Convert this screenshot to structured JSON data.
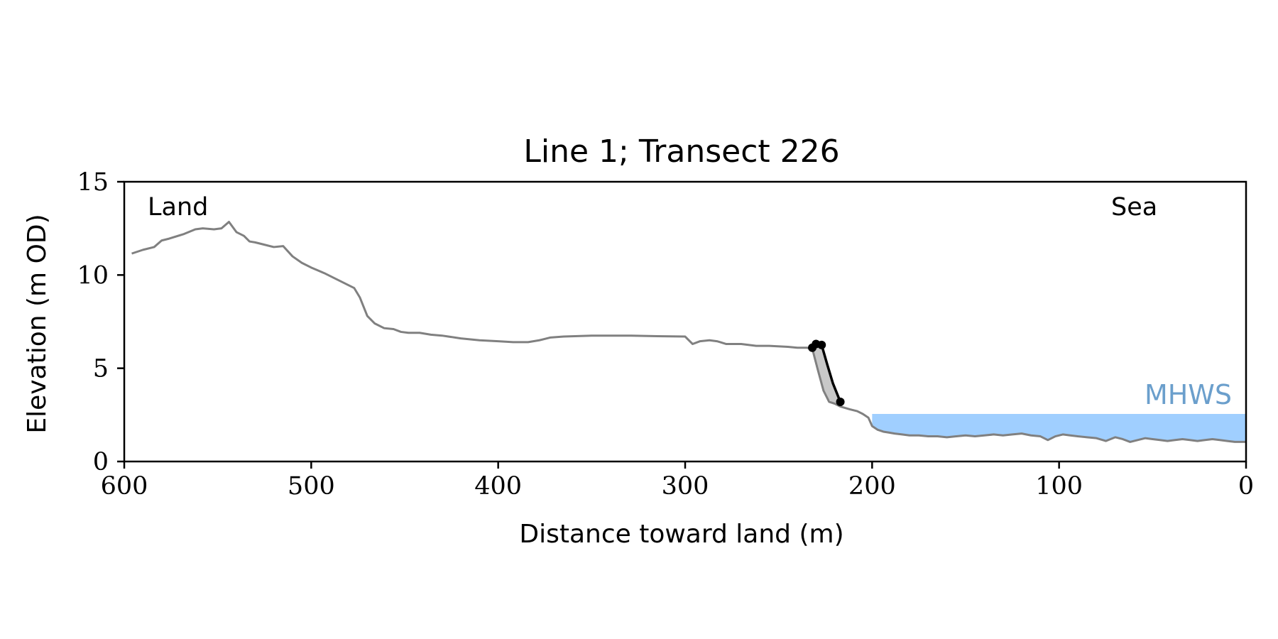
{
  "chart_data": {
    "type": "line",
    "title": "Line 1; Transect 226",
    "xlabel": "Distance toward land (m)",
    "ylabel": "Elevation (m OD)",
    "xlim": [
      600,
      0
    ],
    "ylim": [
      0,
      15
    ],
    "x_ticks": [
      600,
      500,
      400,
      300,
      200,
      100,
      0
    ],
    "y_ticks": [
      0,
      5,
      10,
      15
    ],
    "grid": false,
    "annotations": {
      "left": "Land",
      "right": "Sea",
      "water": "MHWS"
    },
    "mhws": {
      "elevation": 2.55,
      "x_from": 200,
      "x_to": 0,
      "color": "#a0cfff",
      "label_color": "#6b9fcc"
    },
    "profile": {
      "color": "#808080",
      "x": [
        596,
        590,
        584,
        580,
        576,
        568,
        562,
        558,
        552,
        548,
        544,
        540,
        536,
        533,
        530,
        526,
        520,
        515,
        510,
        505,
        500,
        493,
        485,
        477,
        474,
        470,
        466,
        461,
        456,
        452,
        448,
        442,
        436,
        430,
        420,
        410,
        400,
        392,
        384,
        378,
        372,
        365,
        350,
        330,
        315,
        300,
        296,
        292,
        287,
        283,
        278,
        270,
        262,
        255,
        245,
        240,
        235,
        232,
        229,
        226,
        223,
        220,
        217,
        212,
        208,
        205,
        202,
        200,
        197,
        194,
        191,
        188,
        184,
        180,
        175,
        170,
        165,
        160,
        155,
        150,
        145,
        140,
        135,
        130,
        125,
        120,
        115,
        110,
        106,
        102,
        98,
        94,
        90,
        85,
        80,
        75,
        70,
        66,
        62,
        58,
        54,
        50,
        46,
        42,
        38,
        34,
        30,
        26,
        22,
        18,
        14,
        10,
        6,
        2,
        0
      ],
      "y": [
        11.15,
        11.35,
        11.5,
        11.85,
        11.95,
        12.2,
        12.45,
        12.5,
        12.45,
        12.5,
        12.85,
        12.3,
        12.1,
        11.8,
        11.75,
        11.65,
        11.5,
        11.55,
        11.0,
        10.65,
        10.4,
        10.1,
        9.7,
        9.3,
        8.8,
        7.8,
        7.4,
        7.15,
        7.1,
        6.95,
        6.9,
        6.9,
        6.8,
        6.75,
        6.6,
        6.5,
        6.45,
        6.4,
        6.4,
        6.5,
        6.65,
        6.7,
        6.75,
        6.75,
        6.72,
        6.7,
        6.3,
        6.45,
        6.5,
        6.45,
        6.3,
        6.3,
        6.2,
        6.2,
        6.15,
        6.1,
        6.1,
        6.05,
        4.9,
        3.8,
        3.2,
        3.1,
        2.95,
        2.8,
        2.7,
        2.55,
        2.35,
        1.9,
        1.7,
        1.6,
        1.55,
        1.5,
        1.45,
        1.4,
        1.4,
        1.35,
        1.35,
        1.3,
        1.35,
        1.4,
        1.35,
        1.4,
        1.45,
        1.4,
        1.45,
        1.5,
        1.4,
        1.35,
        1.15,
        1.35,
        1.45,
        1.4,
        1.35,
        1.3,
        1.25,
        1.1,
        1.3,
        1.2,
        1.05,
        1.15,
        1.25,
        1.2,
        1.15,
        1.1,
        1.15,
        1.2,
        1.15,
        1.1,
        1.15,
        1.2,
        1.15,
        1.1,
        1.05,
        1.05,
        1.05
      ]
    },
    "cliff": {
      "color": "#000000",
      "x": [
        232,
        230,
        227,
        224,
        221,
        217
      ],
      "y": [
        6.1,
        6.3,
        6.25,
        5.2,
        4.2,
        3.2
      ],
      "marker_x": [
        232,
        230,
        227,
        217
      ],
      "marker_y": [
        6.1,
        6.3,
        6.25,
        3.2
      ]
    },
    "change_fill_color": "#c8c8c8"
  }
}
